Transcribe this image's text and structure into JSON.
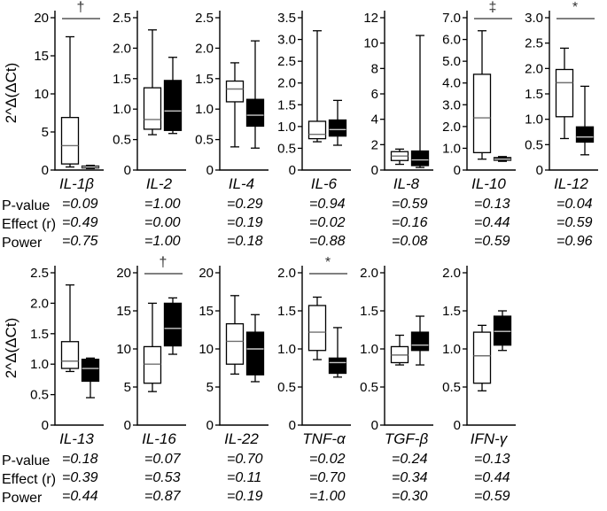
{
  "figure": {
    "ylabel": "2^Δ(ΔCt)",
    "stats_labels": {
      "p": "P-value",
      "effect": "Effect (r)",
      "power": "Power"
    },
    "colors": {
      "open_box": "#ffffff",
      "filled_box": "#000000",
      "axis": "#000000",
      "sig_line": "#808080"
    }
  },
  "chart_data": {
    "type": "boxplot",
    "groups": [
      "open",
      "filled"
    ],
    "box_format": "[whisker_low, q1, median, q3, whisker_high]",
    "rows": [
      {
        "panels": [
          {
            "label": "IL-1β",
            "sig": "†",
            "ylim": [
              0,
              20
            ],
            "ticks": [
              "0",
              "5",
              "10",
              "15",
              "20"
            ],
            "open": [
              0.4,
              0.8,
              3.2,
              6.9,
              17.5
            ],
            "filled": [
              0.2,
              0.28,
              0.4,
              0.52,
              0.62
            ],
            "p": "=0.09",
            "effect": "=0.49",
            "power": "=0.75"
          },
          {
            "label": "IL-2",
            "sig": null,
            "ylim": [
              0,
              2.5
            ],
            "ticks": [
              "0",
              "0.5",
              "1.0",
              "1.5",
              "2.0",
              "2.5"
            ],
            "open": [
              0.58,
              0.67,
              0.83,
              1.35,
              2.3
            ],
            "filled": [
              0.6,
              0.65,
              0.97,
              1.47,
              1.85
            ],
            "p": "=1.00",
            "effect": "=0.00",
            "power": "=1.00"
          },
          {
            "label": "IL-4",
            "sig": null,
            "ylim": [
              0,
              2.5
            ],
            "ticks": [
              "0",
              "0.5",
              "1.0",
              "1.5",
              "2.0",
              "2.5"
            ],
            "open": [
              0.38,
              1.12,
              1.33,
              1.46,
              1.76
            ],
            "filled": [
              0.36,
              0.72,
              0.9,
              1.16,
              2.12
            ],
            "p": "=0.29",
            "effect": "=0.19",
            "power": "=0.18"
          },
          {
            "label": "IL-6",
            "sig": null,
            "ylim": [
              0,
              3.5
            ],
            "ticks": [
              "0",
              "0.5",
              "1.0",
              "1.5",
              "2.0",
              "2.5",
              "3.0",
              "3.5"
            ],
            "open": [
              0.65,
              0.72,
              0.82,
              1.12,
              3.2
            ],
            "filled": [
              0.57,
              0.78,
              0.93,
              1.15,
              1.6
            ],
            "p": "=0.94",
            "effect": "=0.02",
            "power": "=0.88"
          },
          {
            "label": "IL-8",
            "sig": null,
            "ylim": [
              0,
              12
            ],
            "ticks": [
              "0",
              "2",
              "4",
              "6",
              "8",
              "10",
              "12"
            ],
            "open": [
              0.45,
              0.75,
              1.1,
              1.45,
              1.65
            ],
            "filled": [
              0.2,
              0.35,
              0.8,
              1.5,
              10.6
            ],
            "p": "=0.59",
            "effect": "=0.16",
            "power": "=0.08"
          },
          {
            "label": "IL-10",
            "sig": "‡",
            "ylim": [
              0,
              7
            ],
            "ticks": [
              "0",
              "1.0",
              "2.0",
              "3.0",
              "4.0",
              "5.0",
              "6.0",
              "7.0"
            ],
            "open": [
              0.5,
              0.8,
              2.4,
              4.4,
              6.4
            ],
            "filled": [
              0.4,
              0.45,
              0.5,
              0.57,
              0.62
            ],
            "p": "=0.13",
            "effect": "=0.44",
            "power": "=0.59"
          },
          {
            "label": "IL-12",
            "sig": "*",
            "ylim": [
              0,
              3
            ],
            "ticks": [
              "0",
              "0.5",
              "1.0",
              "1.5",
              "2.0",
              "2.5",
              "3.0"
            ],
            "open": [
              0.62,
              1.05,
              1.72,
              1.98,
              2.4
            ],
            "filled": [
              0.3,
              0.55,
              0.65,
              0.85,
              1.65
            ],
            "p": "=0.04",
            "effect": "=0.59",
            "power": "=0.96"
          }
        ]
      },
      {
        "panels": [
          {
            "label": "IL-13",
            "sig": null,
            "ylim": [
              0,
              2.5
            ],
            "ticks": [
              "0",
              "0.5",
              "1.0",
              "1.5",
              "2.0",
              "2.5"
            ],
            "open": [
              0.88,
              0.93,
              1.05,
              1.37,
              2.3
            ],
            "filled": [
              0.45,
              0.72,
              0.93,
              1.08,
              1.1
            ],
            "p": "=0.18",
            "effect": "=0.39",
            "power": "=0.44"
          },
          {
            "label": "IL-16",
            "sig": "†",
            "ylim": [
              0,
              20
            ],
            "ticks": [
              "0",
              "5",
              "10",
              "15",
              "20"
            ],
            "open": [
              4.4,
              5.5,
              8.0,
              10.3,
              16.0
            ],
            "filled": [
              9.3,
              10.4,
              12.7,
              16.0,
              16.7
            ],
            "p": "=0.07",
            "effect": "=0.53",
            "power": "=0.87"
          },
          {
            "label": "IL-22",
            "sig": null,
            "ylim": [
              0,
              20
            ],
            "ticks": [
              "0",
              "5",
              "10",
              "15",
              "20"
            ],
            "open": [
              6.7,
              8.0,
              11.0,
              13.3,
              17.0
            ],
            "filled": [
              5.7,
              6.6,
              10.0,
              12.2,
              14.5
            ],
            "p": "=0.70",
            "effect": "=0.11",
            "power": "=0.19"
          },
          {
            "label": "TNF-α",
            "sig": "*",
            "ylim": [
              0,
              2
            ],
            "ticks": [
              "0",
              "0.5",
              "1.0",
              "1.5",
              "2.0"
            ],
            "open": [
              0.86,
              0.98,
              1.22,
              1.57,
              1.68
            ],
            "filled": [
              0.63,
              0.68,
              0.82,
              0.88,
              1.28
            ],
            "p": "=0.02",
            "effect": "=0.70",
            "power": "=1.00"
          },
          {
            "label": "TGF-β",
            "sig": null,
            "ylim": [
              0,
              2
            ],
            "ticks": [
              "0",
              "0.5",
              "1.0",
              "1.5",
              "2.0"
            ],
            "open": [
              0.79,
              0.82,
              0.92,
              1.03,
              1.18
            ],
            "filled": [
              0.79,
              0.98,
              1.05,
              1.22,
              1.43
            ],
            "p": "=0.24",
            "effect": "=0.34",
            "power": "=0.30"
          },
          {
            "label": "IFN-γ",
            "sig": null,
            "ylim": [
              0,
              2
            ],
            "ticks": [
              "0",
              "0.5",
              "1.0",
              "1.5",
              "2.0"
            ],
            "open": [
              0.45,
              0.55,
              0.91,
              1.22,
              1.31
            ],
            "filled": [
              0.98,
              1.05,
              1.23,
              1.43,
              1.5
            ],
            "p": "=0.13",
            "effect": "=0.44",
            "power": "=0.59"
          }
        ]
      }
    ]
  }
}
